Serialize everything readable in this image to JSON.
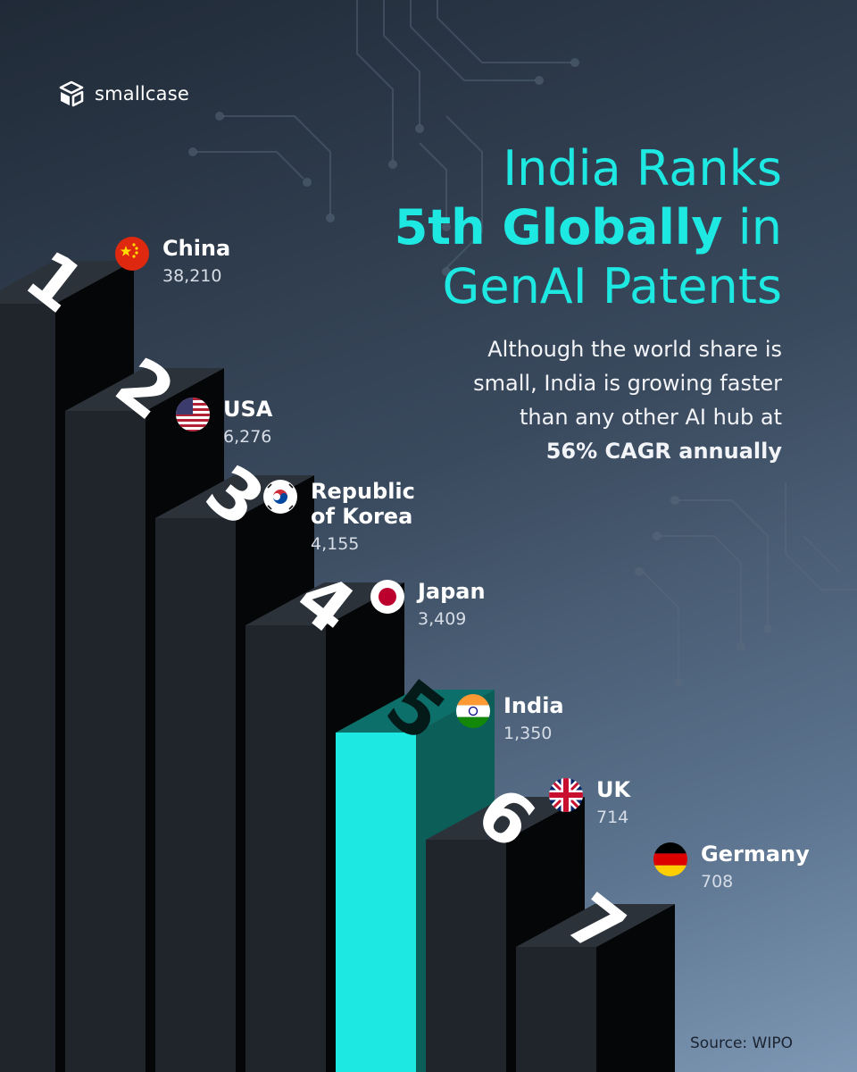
{
  "brand": {
    "name": "smallcase"
  },
  "headline": {
    "line1": "India Ranks",
    "line2_strong": "5th Globally",
    "line2_rest": " in",
    "line3": "GenAI Patents"
  },
  "subtext": {
    "line1": "Although the world share is",
    "line2": "small, India is growing faster",
    "line3": "than any other AI hub at",
    "line4_emphasis": "56% CAGR annually"
  },
  "source": "Source: WIPO",
  "colors": {
    "accent": "#1ee8e2",
    "bar_front": "#20252c",
    "bar_side": "#050607",
    "bar_top": "#2c3239"
  },
  "chart_data": {
    "type": "bar",
    "title": "India Ranks 5th Globally in GenAI Patents",
    "xlabel": "",
    "ylabel": "",
    "categories": [
      "China",
      "USA",
      "Republic of Korea",
      "Japan",
      "India",
      "UK",
      "Germany"
    ],
    "ranks": [
      "1",
      "2",
      "3",
      "4",
      "5",
      "6",
      "7"
    ],
    "values": [
      38210,
      6276,
      4155,
      3409,
      1350,
      714,
      708
    ],
    "value_labels": [
      "38,210",
      "6,276",
      "4,155",
      "3,409",
      "1,350",
      "714",
      "708"
    ],
    "highlight": "India"
  },
  "labels": [
    {
      "country": "China",
      "value": "38,210",
      "flag": "china-flag"
    },
    {
      "country": "USA",
      "value": "6,276",
      "flag": "usa-flag"
    },
    {
      "country": "Republic of Korea",
      "value": "4,155",
      "flag": "korea-flag"
    },
    {
      "country": "Japan",
      "value": "3,409",
      "flag": "japan-flag"
    },
    {
      "country": "India",
      "value": "1,350",
      "flag": "india-flag"
    },
    {
      "country": "UK",
      "value": "714",
      "flag": "uk-flag"
    },
    {
      "country": "Germany",
      "value": "708",
      "flag": "germany-flag"
    }
  ]
}
